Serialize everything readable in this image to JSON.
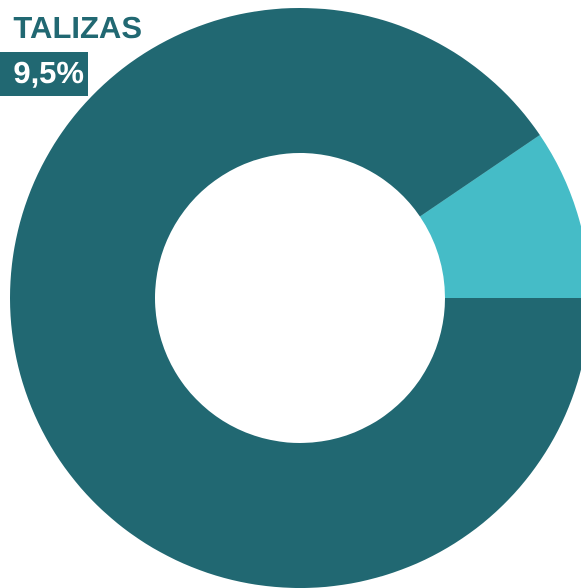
{
  "chart_data": {
    "type": "pie",
    "categories": [
      "TALIZAS",
      null
    ],
    "values": [
      9.5,
      90.5
    ],
    "value_labels": [
      "9,5%",
      null
    ],
    "colors": [
      "#45bcc7",
      "#216872"
    ],
    "donut": true
  }
}
